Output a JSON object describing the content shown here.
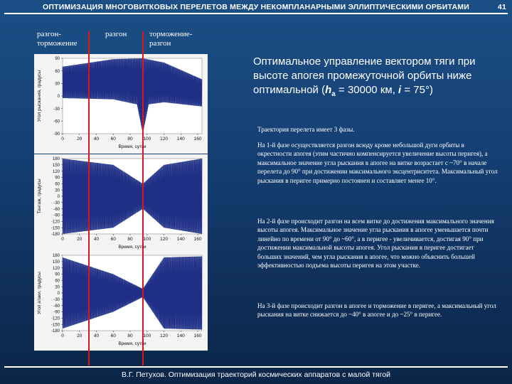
{
  "header": {
    "title": "ОПТИМИЗАЦИЯ МНОГОВИТКОВЫХ ПЕРЕЛЕТОВ МЕЖДУ НЕКОМПЛАНАРНЫМИ ЭЛЛИПТИЧЕСКИМИ ОРБИТАМИ",
    "page": "41"
  },
  "phases": [
    "разгон-\nторможение",
    "разгон",
    "торможение-\nразгон"
  ],
  "heading": {
    "line1": "Оптимальное управление вектором тяги при высоте апогея промежуточной орбиты ниже оптимальной (",
    "h": "h",
    "sub": "a",
    "mid": " = 30000 км, ",
    "i": "i",
    "end": " = 75°)"
  },
  "paragraphs": [
    "Траектория перелета имеет 3 фазы.",
    "На 1-й фазе осуществляется разгон всюду кроме небольшой дуги орбиты в окрестности апогея (этим частично компенсируется увеличение высоты перигея), а максимальное значение угла рыскания в апогее на витке возрастает с ~70° в начале перелета до 90° при достижении максимального эксцентриситета. Максимальный угол рыскания в перигее примерно постоянен и составляет менее 10°.",
    "На 2-й фазе происходит разгон на всем витке до достижения максимального значения высоты апогея. Максимальное значение угла рыскания в апогее уменьшается почти линейно по времени от 90° до ~60°, а в перигее - увеличивается, достигая 90° при достижении максимальной высоты апогея. Угол рыскания в перигее достигает больших значений, чем угла рыскания в апогее, что можно объяснить большей эффективностью подъема высоты перигея на этом участке.",
    "На 3-й фазе происходит разгон в апогее и торможение в перигее, а максимальный угол рыскания на витке снижается до ~40° в апогее и до ~25° в перигее."
  ],
  "footer": "В.Г. Петухов. Оптимизация траекторий космических аппаратов с малой тягой",
  "colors": {
    "trace": "#1f2f86",
    "phase_line": "#e0141a"
  },
  "chart_data": [
    {
      "type": "line",
      "ylabel": "Угол рыскания, градусы",
      "xlabel": "Время, сутки",
      "x_ticks": [
        0,
        20,
        40,
        60,
        80,
        100,
        120,
        140,
        160
      ],
      "y_ticks": [
        90,
        60,
        30,
        0,
        -30,
        -60,
        -90
      ],
      "xlim": [
        0,
        165
      ],
      "ylim": [
        -90,
        90
      ],
      "envelope_upper": [
        [
          0,
          70
        ],
        [
          60,
          88
        ],
        [
          95,
          90
        ],
        [
          120,
          80
        ],
        [
          165,
          40
        ]
      ],
      "envelope_lower": [
        [
          0,
          -5
        ],
        [
          60,
          -8
        ],
        [
          88,
          -20
        ],
        [
          95,
          -90
        ],
        [
          102,
          -20
        ],
        [
          120,
          -15
        ],
        [
          165,
          -25
        ]
      ]
    },
    {
      "type": "line",
      "ylabel": "Тангаж, градусы",
      "xlabel": "Время, сутки",
      "x_ticks": [
        0,
        20,
        40,
        60,
        80,
        100,
        120,
        140,
        160
      ],
      "y_ticks": [
        180,
        150,
        120,
        90,
        60,
        30,
        0,
        -30,
        -60,
        -90,
        -120,
        -150,
        -180
      ],
      "xlim": [
        0,
        165
      ],
      "ylim": [
        -180,
        180
      ],
      "envelope_upper": [
        [
          0,
          180
        ],
        [
          60,
          150
        ],
        [
          95,
          60
        ],
        [
          120,
          150
        ],
        [
          165,
          180
        ]
      ],
      "envelope_lower": [
        [
          0,
          -180
        ],
        [
          60,
          -150
        ],
        [
          95,
          -60
        ],
        [
          120,
          -150
        ],
        [
          165,
          -180
        ]
      ]
    },
    {
      "type": "line",
      "ylabel": "Угол атаки, градусы",
      "xlabel": "Время, сутки",
      "x_ticks": [
        0,
        20,
        40,
        60,
        80,
        100,
        120,
        140,
        160
      ],
      "y_ticks": [
        180,
        150,
        120,
        90,
        60,
        30,
        0,
        -30,
        -60,
        -90,
        -120,
        -150,
        -180
      ],
      "xlim": [
        0,
        165
      ],
      "ylim": [
        -180,
        180
      ],
      "envelope_upper": [
        [
          0,
          170
        ],
        [
          60,
          90
        ],
        [
          95,
          20
        ],
        [
          120,
          170
        ],
        [
          165,
          175
        ]
      ],
      "envelope_lower": [
        [
          0,
          -170
        ],
        [
          60,
          -90
        ],
        [
          95,
          -20
        ],
        [
          120,
          -170
        ],
        [
          165,
          -175
        ]
      ]
    }
  ]
}
